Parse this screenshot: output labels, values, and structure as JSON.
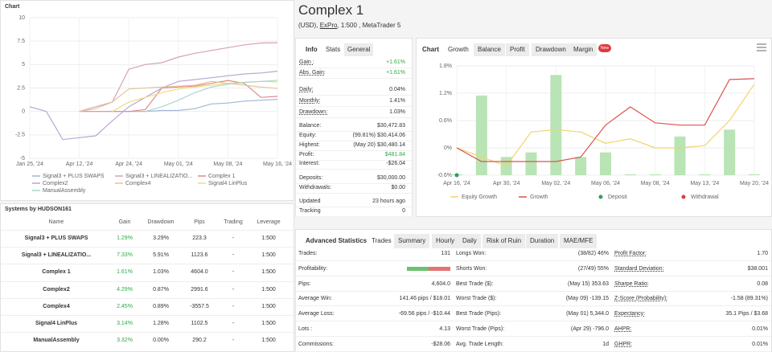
{
  "header": {
    "title": "Complex 1",
    "currency": "(USD),",
    "broker": "ExPro",
    "details": ", 1:500 , MetaTrader 5"
  },
  "chart_data": [
    {
      "type": "line",
      "title": "Chart",
      "categories": [
        "Jan 25, '24",
        null,
        null,
        "Apr 12, '24",
        null,
        null,
        "Apr 24, '24",
        null,
        null,
        "May 01, '24",
        null,
        null,
        "May 08, '24",
        null,
        null,
        "May 16, '24"
      ],
      "ylim": [
        -5,
        10
      ],
      "yticks": [
        -5,
        -2.5,
        0,
        2.5,
        5,
        7.5,
        10
      ],
      "grid": true,
      "series": [
        {
          "name": "Signal3 + PLUS SWAPS",
          "color": "#9fb8d6",
          "values": [
            null,
            null,
            null,
            null,
            null,
            0,
            0,
            0,
            0.1,
            0.1,
            0.3,
            0.8,
            0.9,
            1.1,
            1.2,
            1.29
          ]
        },
        {
          "name": "Signal3 + LINEALIZATIO...",
          "color": "#d7a2b5",
          "values": [
            null,
            null,
            null,
            0,
            0.5,
            1,
            4.5,
            5,
            5.2,
            5.8,
            6.2,
            6.5,
            6.8,
            7.1,
            7.3,
            7.33
          ]
        },
        {
          "name": "Complex 1",
          "color": "#e08a8a",
          "values": [
            null,
            null,
            null,
            0,
            0,
            0,
            0,
            0.2,
            2.5,
            2.6,
            2.7,
            3.0,
            3.3,
            3.0,
            1.5,
            1.61
          ]
        },
        {
          "name": "Complex2",
          "color": "#b9a6d4",
          "values": [
            0.5,
            0,
            -3,
            -2.8,
            -2.6,
            -1,
            0.5,
            1.5,
            2.5,
            3.2,
            3.4,
            3.6,
            3.8,
            4,
            4.1,
            4.29
          ]
        },
        {
          "name": "Complex4",
          "color": "#e2c59a",
          "values": [
            null,
            null,
            null,
            0,
            0.3,
            1,
            2.4,
            2.5,
            2.6,
            2.7,
            2.8,
            3.2,
            3.0,
            2.8,
            2.6,
            2.45
          ]
        },
        {
          "name": "Signal4 LinPlus",
          "color": "#f0dc7a",
          "values": [
            null,
            null,
            null,
            null,
            null,
            0,
            1,
            1.5,
            2,
            2.4,
            2.6,
            2.8,
            3.0,
            3.1,
            3.2,
            3.14
          ]
        },
        {
          "name": "ManualAssembly",
          "color": "#a9d5cf",
          "values": [
            null,
            null,
            null,
            null,
            null,
            null,
            null,
            0,
            0.5,
            1.2,
            2.0,
            2.6,
            2.9,
            3.1,
            3.2,
            3.32
          ]
        }
      ]
    },
    {
      "type": "bar-line",
      "categories": [
        "Apr 16, '24",
        null,
        "Apr 30, '24",
        null,
        "May 02, '24",
        null,
        "May 06, '24",
        null,
        "May 08, '24",
        null,
        "May 13, '24",
        null,
        "May 20, '24"
      ],
      "ylim": [
        -0.6,
        1.8
      ],
      "yticks": [
        {
          "value": -0.6,
          "label": "-0.6%"
        },
        {
          "value": 0,
          "label": "0%"
        },
        {
          "value": 0.6,
          "label": "0.6%"
        },
        {
          "value": 1.2,
          "label": "1.2%"
        },
        {
          "value": 1.8,
          "label": "1.8%"
        }
      ],
      "grid": true,
      "bars": {
        "color": "#b9e4b5",
        "values": [
          -0.58,
          1.15,
          -0.2,
          -0.1,
          1.6,
          -0.2,
          -0.1,
          -0.58,
          -0.58,
          0.25,
          -0.58,
          0.4,
          -0.58
        ]
      },
      "series": [
        {
          "name": "Equity Growth",
          "style": "line",
          "color": "#f2d46b",
          "values": [
            0,
            -0.2,
            -0.4,
            0.35,
            0.4,
            0.35,
            0.1,
            0.2,
            0,
            0,
            0.05,
            0.6,
            1.4
          ]
        },
        {
          "name": "Growth",
          "style": "line",
          "color": "#d9534f",
          "values": [
            0,
            -0.3,
            -0.3,
            -0.3,
            -0.3,
            -0.2,
            0.5,
            0.9,
            0.55,
            0.5,
            0.5,
            1.5,
            1.52
          ]
        },
        {
          "name": "Deposit",
          "style": "dot",
          "color": "#2e9e5b",
          "values": [
            -0.6,
            null,
            null,
            null,
            null,
            null,
            null,
            null,
            null,
            null,
            null,
            null,
            null
          ]
        },
        {
          "name": "Withdrawal",
          "style": "dot",
          "color": "#e0393e",
          "values": [
            null,
            null,
            null,
            null,
            null,
            null,
            null,
            null,
            null,
            null,
            null,
            null,
            null
          ]
        }
      ]
    }
  ],
  "systems": {
    "title": "Systems by HUDSON161",
    "columns": [
      "Name",
      "Gain",
      "Drawdown",
      "Pips",
      "Trading",
      "Leverage"
    ],
    "rows": [
      [
        "Signal3 + PLUS SWAPS",
        "1.29%",
        "3.29%",
        "223.3",
        "-",
        "1:500"
      ],
      [
        "Signal3 + LINEALIZATIO...",
        "7.33%",
        "5.91%",
        "1123.6",
        "-",
        "1:500"
      ],
      [
        "Complex 1",
        "1.61%",
        "1.03%",
        "4604.0",
        "-",
        "1:500"
      ],
      [
        "Complex2",
        "4.29%",
        "0.87%",
        "2991.6",
        "-",
        "1:500"
      ],
      [
        "Complex4",
        "2.45%",
        "0.89%",
        "-3557.5",
        "-",
        "1:500"
      ],
      [
        "Signal4 LinPlus",
        "3.14%",
        "1.28%",
        "1102.5",
        "-",
        "1:500"
      ],
      [
        "ManualAssembly",
        "3.32%",
        "0.00%",
        "290.2",
        "-",
        "1:500"
      ]
    ]
  },
  "info": {
    "tabs": [
      "Info",
      "Stats",
      "General"
    ],
    "rows": [
      {
        "label": "Gain :",
        "value": "+1.61%"
      },
      {
        "label": "Abs. Gain:",
        "value": "+1.61%"
      },
      {
        "label": "Daily:",
        "value": "0.04%"
      },
      {
        "label": "Monthly:",
        "value": "1.41%"
      },
      {
        "label": "Drawdown:",
        "value": "1.03%"
      },
      {
        "label": "Balance:",
        "value": "$30,472.83"
      },
      {
        "label": "Equity:",
        "value": "(99.81%) $30,414.06"
      },
      {
        "label": "Highest:",
        "value": "(May 20) $30,480.14"
      },
      {
        "label": "Profit:",
        "value": "$481.84"
      },
      {
        "label": "Interest:",
        "value": "-$26.04"
      },
      {
        "label": "Deposits:",
        "value": "$30,000.00"
      },
      {
        "label": "Withdrawals:",
        "value": "$0.00"
      },
      {
        "label": "Updated",
        "value": "23 hours ago"
      },
      {
        "label": "Tracking",
        "value": "0"
      }
    ]
  },
  "chart_tabs": [
    "Chart",
    "Growth",
    "Balance",
    "Profit",
    "Drawdown",
    "Margin"
  ],
  "chart_badge": "New",
  "stats": {
    "tabs": [
      "Advanced Statistics",
      "Trades",
      "Summary",
      "Hourly",
      "Daily",
      "Risk of Ruin",
      "Duration",
      "MAE/MFE"
    ],
    "rows": [
      [
        {
          "label": "Trades:",
          "value": "131"
        },
        {
          "label": "Longs Won:",
          "value": "(38/82) 46%"
        },
        {
          "label": "Profit Factor:",
          "value": "1.70"
        }
      ],
      [
        {
          "label": "Profitability:",
          "bar": 50
        },
        {
          "label": "Shorts Won:",
          "value": "(27/49) 55%"
        },
        {
          "label": "Standard Deviation:",
          "value": "$38.001"
        }
      ],
      [
        {
          "label": "Pips:",
          "value": "4,604.0"
        },
        {
          "label": "Best Trade ($):",
          "value": "(May 15) 353.63"
        },
        {
          "label": "Sharpe Ratio:",
          "value": "0.08"
        }
      ],
      [
        {
          "label": "Average Win:",
          "value": "141.46 pips / $18.01"
        },
        {
          "label": "Worst Trade ($):",
          "value": "(May 09) -139.15"
        },
        {
          "label": "Z-Score (Probability):",
          "value": "-1.58 (89.31%)"
        }
      ],
      [
        {
          "label": "Average Loss:",
          "value": "-69.56 pips / -$10.44"
        },
        {
          "label": "Best Trade (Pips):",
          "value": "(May 01) 5,344.0"
        },
        {
          "label": "Expectancy:",
          "value": "35.1 Pips / $3.68"
        }
      ],
      [
        {
          "label": "Lots :",
          "value": "4.13"
        },
        {
          "label": "Worst Trade (Pips):",
          "value": "(Apr 29) -796.0"
        },
        {
          "label": "AHPR:",
          "value": "0.01%"
        }
      ],
      [
        {
          "label": "Commissions:",
          "value": "-$28.06"
        },
        {
          "label": "Avg. Trade Length:",
          "value": "1d"
        },
        {
          "label": "GHPR:",
          "value": "0.01%"
        }
      ]
    ]
  }
}
